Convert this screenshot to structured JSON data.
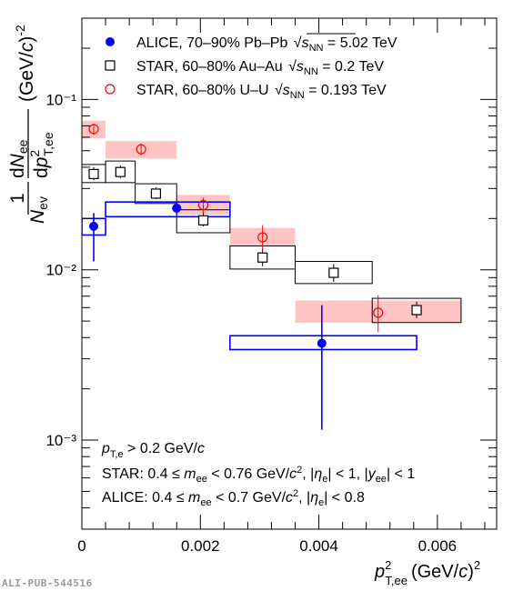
{
  "chart_data": {
    "type": "scatter",
    "title": "",
    "xlabel": "p²_T,ee (GeV/c)²",
    "ylabel": "1/N_ev dN_ee/dp²_T,ee (GeV/c)^-2",
    "x_scale": "linear",
    "y_scale": "log",
    "xlim": [
      0,
      0.007
    ],
    "ylim": [
      0.0003,
      0.3
    ],
    "x_ticks": [
      0,
      0.002,
      0.004,
      0.006
    ],
    "x_tick_labels": [
      "0",
      "0.002",
      "0.004",
      "0.006"
    ],
    "y_ticks": [
      0.001,
      0.01,
      0.1
    ],
    "y_tick_labels": [
      "10⁻³",
      "10⁻²",
      "10⁻¹"
    ],
    "legend_position": "top-left",
    "series": [
      {
        "name": "ALICE, 70–90% Pb–Pb √sNN = 5.02 TeV",
        "marker": "filled-circle",
        "color": "#0000ff",
        "points": [
          {
            "x": 0.0002,
            "y": 0.018,
            "y_err_low": 0.0112,
            "y_err_high": 0.0215,
            "box_x": [
              0.0,
              0.0004
            ],
            "box_y": [
              0.016,
              0.02
            ]
          },
          {
            "x": 0.0016,
            "y": 0.023,
            "y_err_low": 0.0212,
            "y_err_high": 0.0247,
            "box_x": [
              0.0004,
              0.0025
            ],
            "box_y": [
              0.0205,
              0.025
            ]
          },
          {
            "x": 0.00405,
            "y": 0.0037,
            "y_err_low": 0.00115,
            "y_err_high": 0.0062,
            "box_x": [
              0.0025,
              0.00565
            ],
            "box_y": [
              0.0034,
              0.0041
            ]
          }
        ]
      },
      {
        "name": "STAR, 60–80% Au–Au √sNN = 0.2 TeV",
        "marker": "open-square",
        "color": "#000000",
        "points": [
          {
            "x": 0.0002,
            "y": 0.0365,
            "y_err_low": 0.0335,
            "y_err_high": 0.04,
            "box_x": [
              0.0,
              0.0004
            ],
            "box_y": [
              0.0325,
              0.0415
            ]
          },
          {
            "x": 0.00065,
            "y": 0.0375,
            "y_err_low": 0.0345,
            "y_err_high": 0.041,
            "box_x": [
              0.0004,
              0.0009
            ],
            "box_y": [
              0.0325,
              0.0435
            ]
          },
          {
            "x": 0.00125,
            "y": 0.028,
            "y_err_low": 0.026,
            "y_err_high": 0.0305,
            "box_x": [
              0.0009,
              0.0016
            ],
            "box_y": [
              0.0245,
              0.032
            ]
          },
          {
            "x": 0.00205,
            "y": 0.0195,
            "y_err_low": 0.018,
            "y_err_high": 0.0215,
            "box_x": [
              0.0016,
              0.0025
            ],
            "box_y": [
              0.0165,
              0.0225
            ]
          },
          {
            "x": 0.00305,
            "y": 0.0118,
            "y_err_low": 0.0105,
            "y_err_high": 0.0133,
            "box_x": [
              0.0025,
              0.0036
            ],
            "box_y": [
              0.0101,
              0.0138
            ]
          },
          {
            "x": 0.00425,
            "y": 0.0096,
            "y_err_low": 0.0085,
            "y_err_high": 0.0108,
            "box_x": [
              0.0036,
              0.0049
            ],
            "box_y": [
              0.0083,
              0.0112
            ]
          },
          {
            "x": 0.00565,
            "y": 0.0058,
            "y_err_low": 0.0052,
            "y_err_high": 0.0065,
            "box_x": [
              0.0049,
              0.0064
            ],
            "box_y": [
              0.0049,
              0.0068
            ]
          }
        ]
      },
      {
        "name": "STAR, 60–80% U–U √sNN = 0.193 TeV",
        "marker": "open-circle",
        "color": "#ff0000",
        "box_color": "#ffc4c4",
        "points": [
          {
            "x": 0.0002,
            "y": 0.067,
            "y_err_low": 0.062,
            "y_err_high": 0.072,
            "box_x": [
              0.0,
              0.0004
            ],
            "box_y": [
              0.059,
              0.075
            ]
          },
          {
            "x": 0.001,
            "y": 0.051,
            "y_err_low": 0.047,
            "y_err_high": 0.055,
            "box_x": [
              0.0004,
              0.0016
            ],
            "box_y": [
              0.045,
              0.057
            ]
          },
          {
            "x": 0.00205,
            "y": 0.024,
            "y_err_low": 0.0215,
            "y_err_high": 0.0265,
            "box_x": [
              0.0016,
              0.0025
            ],
            "box_y": [
              0.021,
              0.0275
            ]
          },
          {
            "x": 0.00305,
            "y": 0.0155,
            "y_err_low": 0.0132,
            "y_err_high": 0.0183,
            "box_x": [
              0.0025,
              0.0036
            ],
            "box_y": [
              0.0138,
              0.0176
            ]
          },
          {
            "x": 0.005,
            "y": 0.0056,
            "y_err_low": 0.0043,
            "y_err_high": 0.0071,
            "box_x": [
              0.0036,
              0.0064
            ],
            "box_y": [
              0.0049,
              0.0066
            ]
          }
        ]
      }
    ],
    "annotations": [
      "p_T,e > 0.2 GeV/c",
      "STAR: 0.4 ≤ m_ee < 0.76 GeV/c², |η_e| < 1, |y_ee| < 1",
      "ALICE: 0.4 ≤ m_ee < 0.7 GeV/c², |η_e| < 0.8"
    ]
  },
  "watermark": "ALI-PUB-544516"
}
